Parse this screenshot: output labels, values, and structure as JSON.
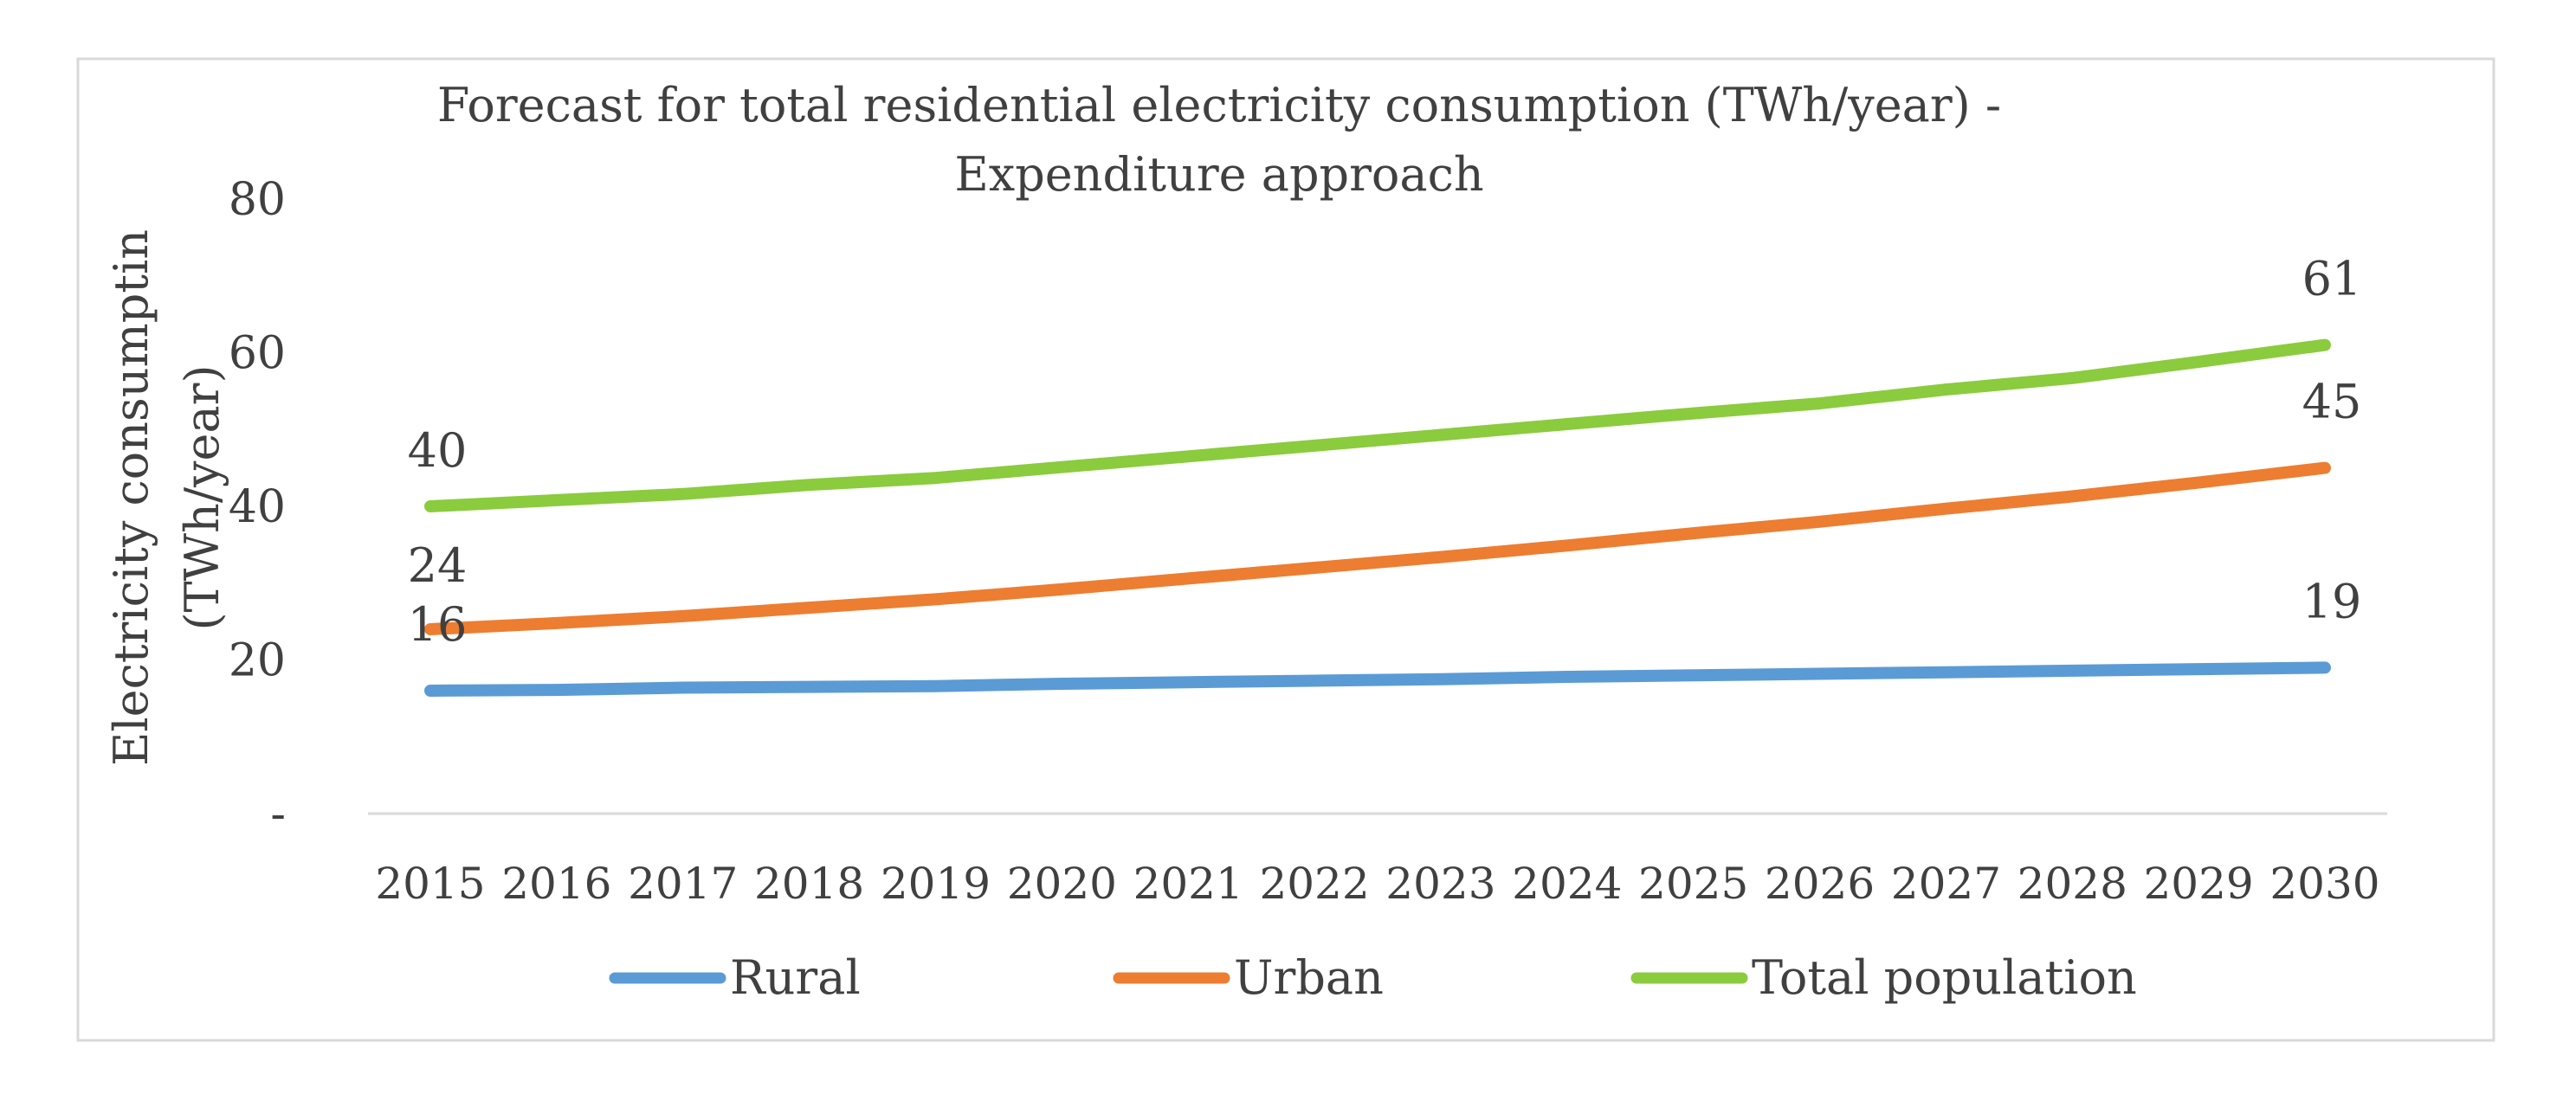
{
  "chart_data": {
    "type": "line",
    "title": "Forecast for total residential electricity consumption (TWh/year) -",
    "subtitle": "Expenditure approach",
    "ylabel_line1": "Electricity consumptin",
    "ylabel_line2": "(TWh/year)",
    "xlabel": "",
    "ylim": [
      0,
      80
    ],
    "yticks": [
      {
        "value": 0,
        "label": "-"
      },
      {
        "value": 20,
        "label": "20"
      },
      {
        "value": 40,
        "label": "40"
      },
      {
        "value": 60,
        "label": "60"
      },
      {
        "value": 80,
        "label": "80"
      }
    ],
    "categories": [
      "2015",
      "2016",
      "2017",
      "2018",
      "2019",
      "2020",
      "2021",
      "2022",
      "2023",
      "2024",
      "2025",
      "2026",
      "2027",
      "2028",
      "2029",
      "2030"
    ],
    "grid": false,
    "legend_position": "bottom",
    "series": [
      {
        "name": "Rural",
        "color": "#5B9BD5",
        "values": [
          16,
          16.1,
          16.4,
          16.5,
          16.6,
          16.9,
          17.1,
          17.3,
          17.5,
          17.8,
          18.0,
          18.2,
          18.4,
          18.6,
          18.8,
          19
        ],
        "start_label": "16",
        "end_label": "19"
      },
      {
        "name": "Urban",
        "color": "#ED7D31",
        "values": [
          24,
          24.8,
          25.7,
          26.8,
          27.9,
          29.2,
          30.6,
          32.0,
          33.4,
          34.9,
          36.5,
          38.0,
          39.7,
          41.3,
          43.1,
          45
        ],
        "start_label": "24",
        "end_label": "45"
      },
      {
        "name": "Total population",
        "color": "#8BCB3E",
        "values": [
          40,
          40.8,
          41.6,
          42.8,
          43.7,
          45.1,
          46.5,
          47.9,
          49.3,
          50.7,
          52.1,
          53.4,
          55.2,
          56.7,
          58.8,
          61
        ],
        "start_label": "40",
        "end_label": "61"
      }
    ]
  }
}
